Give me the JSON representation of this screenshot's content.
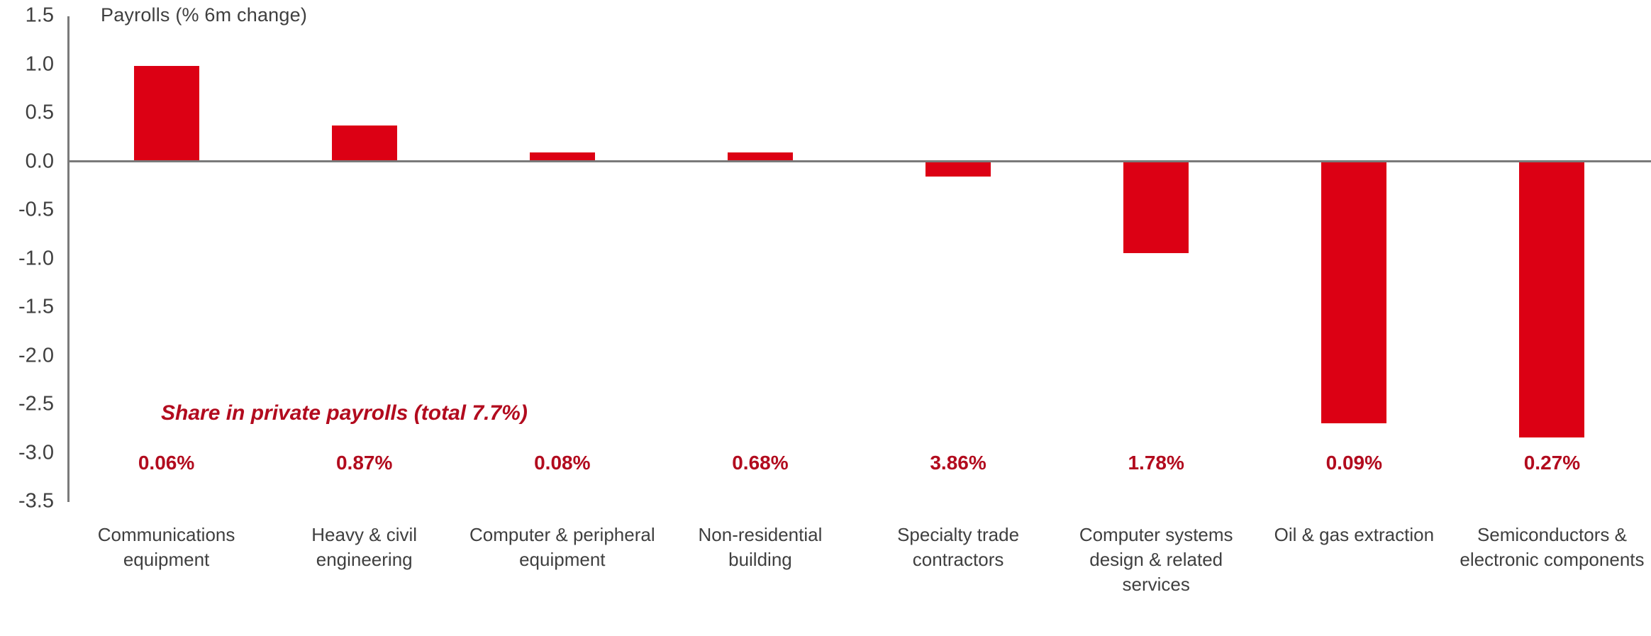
{
  "chart_data": {
    "type": "bar",
    "title": "Payrolls (% 6m change)",
    "categories": [
      "Communications equipment",
      "Heavy & civil engineering",
      "Computer & peripheral equipment",
      "Non-residential building",
      "Specialty trade contractors",
      "Computer systems design & related services",
      "Oil & gas extraction",
      "Semiconductors & electronic components"
    ],
    "values": [
      0.97,
      0.36,
      0.08,
      0.08,
      -0.16,
      -0.95,
      -2.7,
      -2.85
    ],
    "share_annotation": "Share in private payrolls (total 7.7%)",
    "share_values": [
      "0.06%",
      "0.87%",
      "0.08%",
      "0.68%",
      "3.86%",
      "1.78%",
      "0.09%",
      "0.27%"
    ],
    "xlabel": "",
    "ylabel": "Payrolls (% 6m change)",
    "ylim": [
      -3.5,
      1.5
    ],
    "ytick_labels": [
      "1.5",
      "1.0",
      "0.5",
      "0.0",
      "-0.5",
      "-1.0",
      "-1.5",
      "-2.0",
      "-2.5",
      "-3.0",
      "-3.5"
    ],
    "ytick_values": [
      1.5,
      1.0,
      0.5,
      0.0,
      -0.5,
      -1.0,
      -1.5,
      -2.0,
      -2.5,
      -3.0,
      -3.5
    ],
    "grid": false,
    "legend": null,
    "bar_color": "#DC0014",
    "accent_color": "#B20B1E",
    "axis_color": "#7a7a7a",
    "text_color": "#3f3f3f"
  }
}
